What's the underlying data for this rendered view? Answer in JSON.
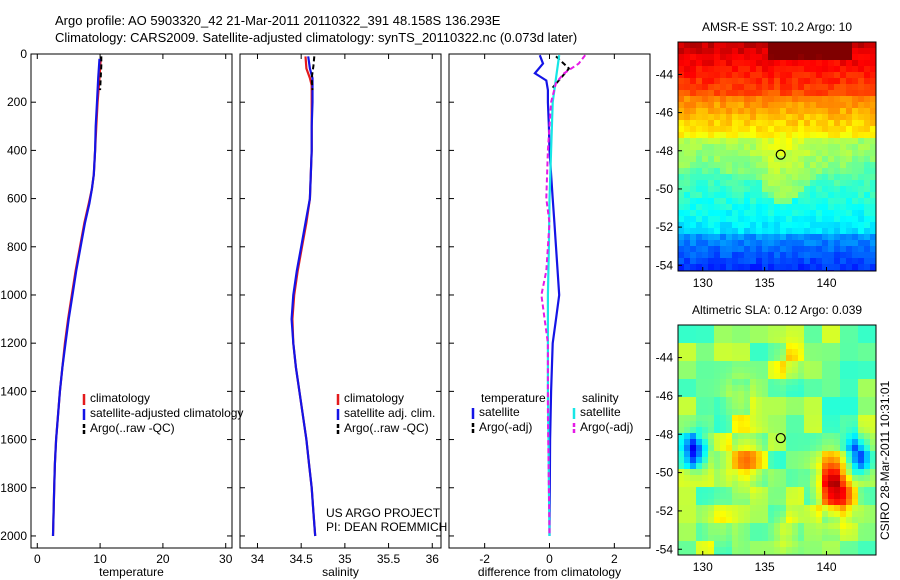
{
  "header": {
    "line1": "Argo profile: AO 5903320_42 21-Mar-2011 20110322_391 48.158S 136.293E",
    "line2": "Climatology: CARS2009. Satellite-adjusted climatology: synTS_20110322.nc (0.073d later)"
  },
  "stamp": "CSIRO 28-Mar-2011 10:31:01",
  "colors": {
    "red": "#e41a1c",
    "blue": "#1414e6",
    "black": "#000000",
    "cyan": "#17e6e6",
    "magenta": "#e61ae6"
  },
  "chart_data": [
    {
      "type": "line",
      "panel": "temperature",
      "xlabel": "temperature",
      "xlim": [
        -1,
        31
      ],
      "ylim": [
        2050,
        0
      ],
      "xticks": [
        0,
        10,
        20,
        30
      ],
      "yticks": [
        0,
        200,
        400,
        600,
        800,
        1000,
        1200,
        1400,
        1600,
        1800,
        2000
      ],
      "legend": [
        "climatology",
        "satellite-adjusted climatology",
        "Argo(..raw -QC)"
      ],
      "series": [
        {
          "name": "climatology",
          "color": "red",
          "depth": [
            20,
            100,
            200,
            300,
            400,
            500,
            560,
            620,
            700,
            800,
            900,
            1000,
            1100,
            1200,
            1300,
            1400,
            1500,
            1600,
            1700,
            1800,
            1900,
            2000
          ],
          "values": [
            10.1,
            9.9,
            9.6,
            9.4,
            9.2,
            9.0,
            8.7,
            8.2,
            7.5,
            6.8,
            6.1,
            5.5,
            4.9,
            4.4,
            4.0,
            3.6,
            3.3,
            3.0,
            2.8,
            2.7,
            2.6,
            2.5
          ]
        },
        {
          "name": "satellite-adjusted climatology",
          "color": "blue",
          "depth": [
            20,
            100,
            200,
            300,
            400,
            500,
            560,
            620,
            700,
            800,
            900,
            1000,
            1100,
            1200,
            1300,
            1400,
            1500,
            1600,
            1700,
            1800,
            1900,
            2000
          ],
          "values": [
            9.9,
            9.7,
            9.5,
            9.3,
            9.2,
            9.0,
            8.7,
            8.3,
            7.6,
            6.9,
            6.2,
            5.6,
            5.0,
            4.5,
            4.0,
            3.6,
            3.3,
            3.0,
            2.8,
            2.7,
            2.6,
            2.5
          ]
        },
        {
          "name": "Argo(..raw -QC)",
          "color": "black",
          "dashed": true,
          "depth": [
            10,
            50,
            100,
            150
          ],
          "values": [
            10.2,
            10.2,
            10.1,
            10.0
          ]
        }
      ]
    },
    {
      "type": "line",
      "panel": "salinity",
      "xlabel": "salinity",
      "xlim": [
        33.8,
        36.1
      ],
      "ylim": [
        2050,
        0
      ],
      "xticks": [
        34,
        34.5,
        35,
        35.5,
        36
      ],
      "legend": [
        "climatology",
        "satellite adj. clim.",
        "Argo(..raw -QC)"
      ],
      "footnote": [
        "US ARGO PROJECT",
        "PI: DEAN ROEMMICH"
      ],
      "series": [
        {
          "name": "climatology",
          "color": "red",
          "depth": [
            10,
            60,
            100,
            130,
            200,
            300,
            400,
            500,
            600,
            700,
            800,
            900,
            1000,
            1100,
            1200,
            1300,
            1400,
            1500,
            1600,
            1700,
            1800,
            1900,
            2000
          ],
          "values": [
            34.55,
            34.56,
            34.6,
            34.62,
            34.62,
            34.62,
            34.62,
            34.61,
            34.6,
            34.56,
            34.51,
            34.46,
            34.42,
            34.4,
            34.41,
            34.44,
            34.48,
            34.52,
            34.56,
            34.59,
            34.62,
            34.64,
            34.66
          ]
        },
        {
          "name": "satellite adj. clim.",
          "color": "blue",
          "depth": [
            10,
            60,
            100,
            130,
            200,
            300,
            400,
            500,
            600,
            700,
            800,
            900,
            1000,
            1100,
            1200,
            1300,
            1400,
            1500,
            1600,
            1700,
            1800,
            1900,
            2000
          ],
          "values": [
            34.58,
            34.6,
            34.63,
            34.63,
            34.63,
            34.62,
            34.62,
            34.61,
            34.6,
            34.55,
            34.5,
            34.45,
            34.41,
            34.39,
            34.41,
            34.44,
            34.48,
            34.52,
            34.56,
            34.59,
            34.62,
            34.64,
            34.66
          ]
        },
        {
          "name": "Argo(..raw -QC)",
          "color": "black",
          "dashed": true,
          "depth": [
            10,
            50,
            100,
            150
          ],
          "values": [
            34.65,
            34.64,
            34.62,
            34.63
          ]
        }
      ]
    },
    {
      "type": "line",
      "panel": "difference",
      "xlabel": "difference from climatology",
      "xlim": [
        -3.1,
        3.1
      ],
      "ylim": [
        2050,
        0
      ],
      "xticks": [
        -2,
        0,
        2
      ],
      "legend_temperature": [
        "temperature",
        "satellite",
        "Argo(-adj)"
      ],
      "legend_salinity": [
        "salinity",
        "satellite",
        "Argo(-adj)"
      ],
      "series": [
        {
          "name": "temperature satellite",
          "color": "blue",
          "depth": [
            5,
            40,
            80,
            110,
            150,
            200,
            300,
            400,
            500,
            600,
            700,
            800,
            900,
            1000,
            1100,
            1200,
            1400,
            1600,
            1800,
            2000
          ],
          "values": [
            -0.3,
            -0.2,
            -0.45,
            -0.1,
            -0.05,
            -0.05,
            -0.02,
            0.0,
            0.05,
            0.1,
            0.15,
            0.2,
            0.25,
            0.3,
            0.2,
            0.1,
            0.05,
            0.02,
            0.01,
            0.0
          ]
        },
        {
          "name": "temperature Argo(-adj)",
          "color": "black",
          "dashed": true,
          "depth": [
            10,
            60,
            100,
            140
          ],
          "values": [
            0.2,
            0.6,
            0.35,
            0.1
          ]
        },
        {
          "name": "salinity satellite",
          "color": "cyan",
          "depth": [
            5,
            100,
            200,
            400,
            600,
            800,
            1000,
            1200,
            1400,
            1600,
            1800,
            2000
          ],
          "values": [
            0.3,
            0.2,
            0.1,
            0.05,
            0.0,
            -0.02,
            -0.05,
            -0.05,
            -0.05,
            -0.03,
            -0.02,
            0.0
          ]
        },
        {
          "name": "salinity Argo(-adj)",
          "color": "magenta",
          "dashed": true,
          "depth": [
            5,
            40,
            80,
            120,
            200,
            400,
            600,
            700,
            900,
            1000,
            1100,
            1200,
            1500,
            1800,
            2000
          ],
          "values": [
            1.1,
            0.9,
            0.45,
            0.2,
            0.05,
            -0.05,
            -0.1,
            0.0,
            -0.1,
            -0.25,
            -0.15,
            -0.05,
            -0.05,
            -0.02,
            0.0
          ]
        }
      ]
    },
    {
      "type": "heatmap",
      "panel": "AMSR-E SST",
      "title": "AMSR-E SST: 10.2 Argo: 10",
      "xlim": [
        128,
        144
      ],
      "ylim": [
        -54.3,
        -42.3
      ],
      "xticks": [
        130,
        135,
        140
      ],
      "yticks": [
        -44,
        -46,
        -48,
        -50,
        -52,
        -54
      ],
      "marker": {
        "lon": 136.3,
        "lat": -48.2
      }
    },
    {
      "type": "heatmap",
      "panel": "Altimetric SLA",
      "title": "Altimetric SLA: 0.12 Argo: 0.039",
      "xlim": [
        128,
        144
      ],
      "ylim": [
        -54.3,
        -42.3
      ],
      "xticks": [
        130,
        135,
        140
      ],
      "yticks": [
        -44,
        -46,
        -48,
        -50,
        -52,
        -54
      ],
      "marker": {
        "lon": 136.3,
        "lat": -48.2
      }
    }
  ]
}
